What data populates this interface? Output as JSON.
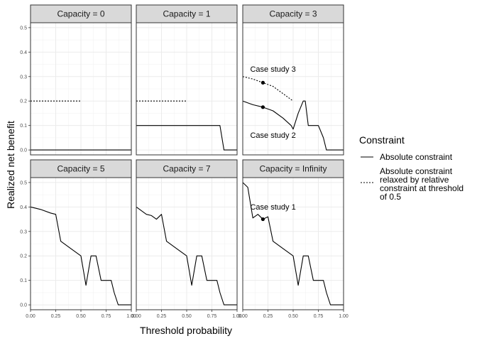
{
  "chart_data": {
    "type": "line",
    "xlabel": "Threshold probability",
    "ylabel": "Realized net benefit",
    "xlim": [
      0,
      1
    ],
    "ylim": [
      -0.02,
      0.52
    ],
    "x_ticks": [
      0,
      0.25,
      0.5,
      0.75,
      1
    ],
    "x_tick_labels": [
      "0.00",
      "0.25",
      "0.50",
      "0.75",
      "1.00"
    ],
    "y_ticks": [
      0,
      0.1,
      0.2,
      0.3,
      0.4,
      0.5
    ],
    "y_tick_labels": [
      "0.0",
      "0.1",
      "0.2",
      "0.3",
      "0.4",
      "0.5"
    ],
    "grid": true,
    "legend": {
      "title": "Constraint",
      "position": "right",
      "entries": [
        {
          "label": "Absolute constraint",
          "linetype": "solid"
        },
        {
          "label_lines": [
            "Absolute constraint",
            "relaxed by relative",
            "constraint at threshold",
            "of 0.5"
          ],
          "linetype": "dotted"
        }
      ]
    },
    "panels": [
      {
        "strip": "Capacity = 0",
        "series": [
          {
            "linetype": "solid",
            "x": [
              0,
              1
            ],
            "y": [
              0,
              0
            ]
          },
          {
            "linetype": "dotted",
            "x": [
              0,
              0.5
            ],
            "y": [
              0.2,
              0.2
            ]
          }
        ],
        "points": [],
        "annotations": []
      },
      {
        "strip": "Capacity = 1",
        "series": [
          {
            "linetype": "solid",
            "x": [
              0,
              0.1,
              0.2,
              0.3,
              0.4,
              0.5,
              0.6,
              0.7,
              0.83,
              0.87,
              1
            ],
            "y": [
              0.1,
              0.1,
              0.1,
              0.1,
              0.1,
              0.1,
              0.1,
              0.1,
              0.1,
              0,
              0
            ]
          },
          {
            "linetype": "dotted",
            "x": [
              0,
              0.5
            ],
            "y": [
              0.2,
              0.2
            ]
          }
        ],
        "points": [],
        "annotations": []
      },
      {
        "strip": "Capacity = 3",
        "series": [
          {
            "linetype": "solid",
            "x": [
              0,
              0.1,
              0.2,
              0.3,
              0.4,
              0.48,
              0.5,
              0.55,
              0.6,
              0.62,
              0.65,
              0.75,
              0.8,
              0.83,
              0.87,
              1
            ],
            "y": [
              0.2,
              0.185,
              0.175,
              0.16,
              0.13,
              0.1,
              0.085,
              0.15,
              0.2,
              0.2,
              0.1,
              0.1,
              0.05,
              0,
              0,
              0
            ]
          },
          {
            "linetype": "dotted",
            "x": [
              0,
              0.1,
              0.2,
              0.3,
              0.4,
              0.5
            ],
            "y": [
              0.3,
              0.29,
              0.275,
              0.26,
              0.23,
              0.2
            ]
          }
        ],
        "points": [
          {
            "x": 0.2,
            "y": 0.275
          },
          {
            "x": 0.2,
            "y": 0.175
          }
        ],
        "annotations": [
          {
            "text": "Case study 3",
            "x": 0.3,
            "y": 0.32
          },
          {
            "text": "Case study 2",
            "x": 0.3,
            "y": 0.05
          }
        ]
      },
      {
        "strip": "Capacity = 5",
        "series": [
          {
            "linetype": "solid",
            "x": [
              0,
              0.1,
              0.2,
              0.25,
              0.3,
              0.4,
              0.5,
              0.55,
              0.6,
              0.65,
              0.7,
              0.75,
              0.8,
              0.83,
              0.87,
              1
            ],
            "y": [
              0.4,
              0.39,
              0.375,
              0.37,
              0.26,
              0.23,
              0.2,
              0.08,
              0.2,
              0.2,
              0.1,
              0.1,
              0.1,
              0.05,
              0,
              0
            ]
          }
        ],
        "points": [],
        "annotations": []
      },
      {
        "strip": "Capacity = 7",
        "series": [
          {
            "linetype": "solid",
            "x": [
              0,
              0.1,
              0.15,
              0.2,
              0.25,
              0.3,
              0.4,
              0.5,
              0.55,
              0.6,
              0.65,
              0.7,
              0.75,
              0.8,
              0.83,
              0.87,
              1
            ],
            "y": [
              0.4,
              0.37,
              0.365,
              0.35,
              0.37,
              0.26,
              0.23,
              0.2,
              0.08,
              0.2,
              0.2,
              0.1,
              0.1,
              0.1,
              0.05,
              0,
              0
            ]
          }
        ],
        "points": [],
        "annotations": []
      },
      {
        "strip": "Capacity = Infinity",
        "series": [
          {
            "linetype": "solid",
            "x": [
              0,
              0.05,
              0.1,
              0.15,
              0.2,
              0.25,
              0.3,
              0.4,
              0.5,
              0.55,
              0.6,
              0.65,
              0.7,
              0.75,
              0.8,
              0.83,
              0.87,
              1
            ],
            "y": [
              0.5,
              0.48,
              0.355,
              0.37,
              0.35,
              0.36,
              0.26,
              0.23,
              0.2,
              0.08,
              0.2,
              0.2,
              0.1,
              0.1,
              0.1,
              0.05,
              0,
              0
            ]
          }
        ],
        "points": [
          {
            "x": 0.2,
            "y": 0.35
          }
        ],
        "annotations": [
          {
            "text": "Case study 1",
            "x": 0.3,
            "y": 0.39
          }
        ]
      }
    ]
  }
}
